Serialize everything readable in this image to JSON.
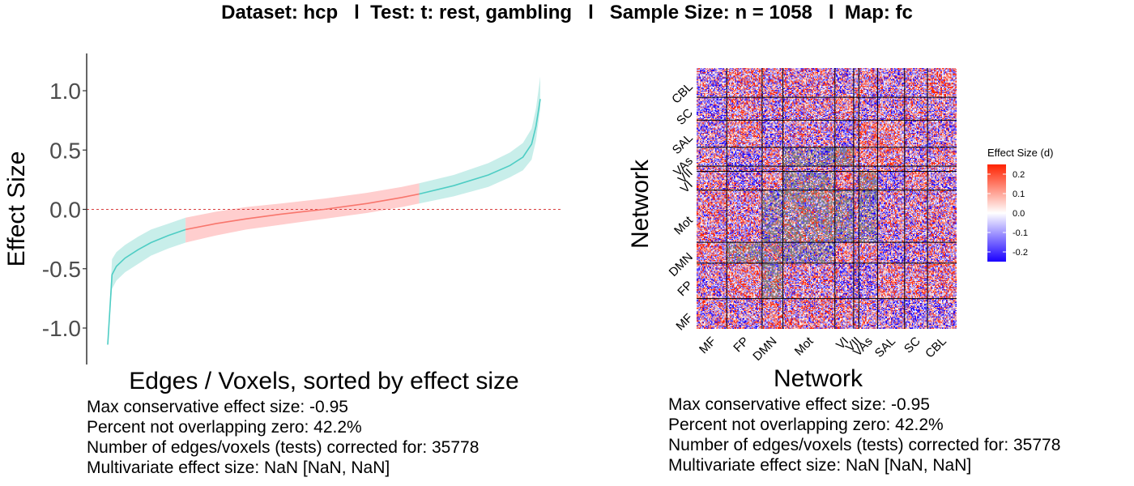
{
  "header": {
    "title": "Dataset: hcp   l  Test: t: rest, gambling   l   Sample Size: n = 1058   l  Map: fc"
  },
  "colors": {
    "ci_outside_zero": "#4ecdc4",
    "ci_outside_zero_fill": "#c8eeea",
    "ci_overlapping_zero": "#f8766d",
    "ci_overlapping_zero_fill": "#ffcece",
    "zero_line": "#d94040",
    "heat_low": "#1a00ff",
    "heat_mid": "#ffffff",
    "heat_high": "#ff2200",
    "heat_na": "#7f7f7f"
  },
  "chart_data": [
    {
      "type": "line",
      "xlabel": "Edges / Voxels, sorted by effect size",
      "ylabel": "Effect Size",
      "ylim": [
        -1.25,
        1.3
      ],
      "yticks": [
        1.0,
        0.5,
        0.0,
        -0.5,
        -1.0
      ],
      "ytick_labels": [
        "1.0",
        "0.5",
        "0.0",
        "-0.5",
        "-1.0"
      ],
      "reference_line": 0,
      "overlap_zero_region": [
        0.18,
        0.72
      ],
      "series": [
        {
          "x": [
            0,
            0.01,
            0.02,
            0.04,
            0.07,
            0.1,
            0.14,
            0.18,
            0.25,
            0.32,
            0.4,
            0.5,
            0.6,
            0.68,
            0.72,
            0.8,
            0.88,
            0.93,
            0.96,
            0.98,
            0.99,
            1.0
          ],
          "y": [
            -1.14,
            -0.55,
            -0.48,
            -0.41,
            -0.34,
            -0.28,
            -0.22,
            -0.17,
            -0.12,
            -0.08,
            -0.04,
            0.0,
            0.05,
            0.1,
            0.13,
            0.2,
            0.29,
            0.37,
            0.44,
            0.55,
            0.7,
            0.93
          ],
          "lower": [
            -1.14,
            -0.67,
            -0.6,
            -0.53,
            -0.46,
            -0.39,
            -0.33,
            -0.28,
            -0.22,
            -0.17,
            -0.13,
            -0.08,
            -0.03,
            0.02,
            0.05,
            0.11,
            0.19,
            0.27,
            0.33,
            0.42,
            0.58,
            0.85
          ],
          "upper": [
            -1.14,
            -0.42,
            -0.36,
            -0.3,
            -0.23,
            -0.17,
            -0.12,
            -0.07,
            -0.02,
            0.02,
            0.05,
            0.09,
            0.14,
            0.19,
            0.22,
            0.29,
            0.39,
            0.48,
            0.56,
            0.68,
            0.85,
            1.12
          ]
        }
      ]
    },
    {
      "type": "heatmap",
      "xlabel": "Network",
      "ylabel": "Network",
      "networks": [
        "MF",
        "FP",
        "DMN",
        "Mot",
        "VI",
        "VII",
        "VAs",
        "SAL",
        "SC",
        "CBL"
      ],
      "network_sizes": [
        29,
        34,
        20,
        50,
        18,
        5,
        18,
        26,
        22,
        28
      ],
      "legend_title": "Effect Size (d)",
      "legend_ticks": [
        0.2,
        0.1,
        0.0,
        -0.1,
        -0.2
      ],
      "legend_labels": [
        "0.2",
        "0.1",
        "0.0",
        "-0.1",
        "-0.2"
      ],
      "legend_range": [
        -0.25,
        0.25
      ]
    }
  ],
  "stats": {
    "line1": "Max conservative effect size: -0.95",
    "line2": "Percent not overlapping zero: 42.2%",
    "line3": "Number of edges/voxels (tests) corrected for: 35778",
    "line4": "Multivariate effect size: NaN [NaN, NaN]"
  }
}
